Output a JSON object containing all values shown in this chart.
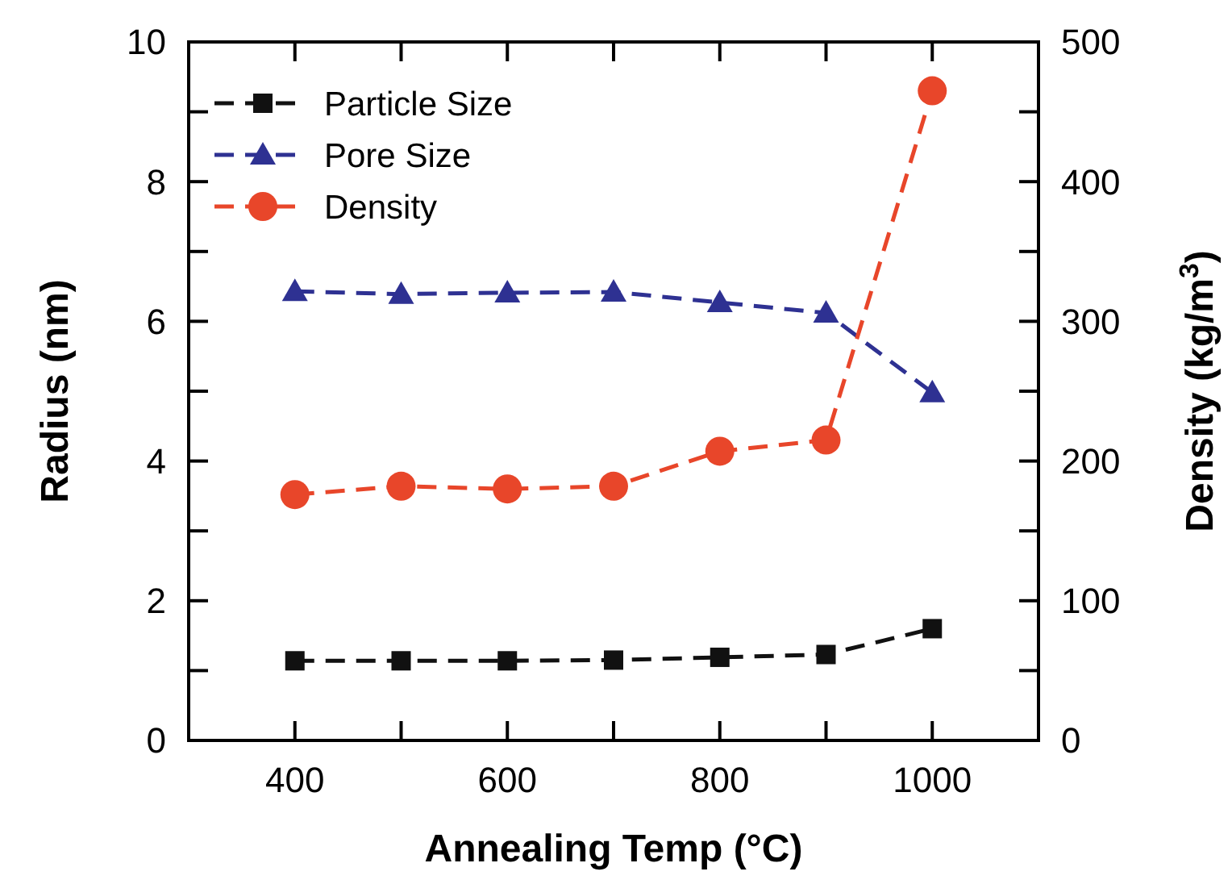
{
  "chart_data": {
    "type": "line",
    "xlabel": "Annealing Temp (°C)",
    "ylabel": "Radius (nm)",
    "y2label": "Density (kg/m$^{3}$)",
    "x": [
      400,
      500,
      600,
      700,
      800,
      900,
      1000
    ],
    "xlim": [
      300,
      1100
    ],
    "xticks": [
      400,
      {
        "value": 500,
        "label": null
      },
      600,
      {
        "value": 700,
        "label": null
      },
      800,
      {
        "value": 900,
        "label": null
      },
      1000
    ],
    "ylim": [
      0,
      10
    ],
    "yticks": [
      0,
      {
        "value": 1,
        "label": null
      },
      2,
      {
        "value": 3,
        "label": null
      },
      4,
      {
        "value": 5,
        "label": null
      },
      6,
      {
        "value": 7,
        "label": null
      },
      8,
      {
        "value": 9,
        "label": null
      },
      10
    ],
    "y2lim": [
      0,
      500
    ],
    "y2ticks": [
      0,
      {
        "value": 50,
        "label": null
      },
      100,
      {
        "value": 150,
        "label": null
      },
      200,
      {
        "value": 250,
        "label": null
      },
      300,
      {
        "value": 350,
        "label": null
      },
      400,
      {
        "value": 450,
        "label": null
      },
      500
    ],
    "legend": "top left",
    "line_style": "dashed",
    "grid": false,
    "series": [
      {
        "name": "Particle Size",
        "color": "#111111",
        "marker": "square",
        "values": [
          1.14,
          1.14,
          1.14,
          1.15,
          1.19,
          1.23,
          1.6
        ]
      },
      {
        "name": "Pore Size",
        "color": "#2e3192",
        "marker": "triangle",
        "values": [
          6.43,
          6.39,
          6.41,
          6.42,
          6.27,
          6.12,
          4.98
        ]
      },
      {
        "name": "Density",
        "color": "#e8462a",
        "marker": "circle",
        "axis": "y2",
        "values": [
          176,
          182,
          180,
          182,
          207,
          215,
          465
        ]
      }
    ]
  }
}
